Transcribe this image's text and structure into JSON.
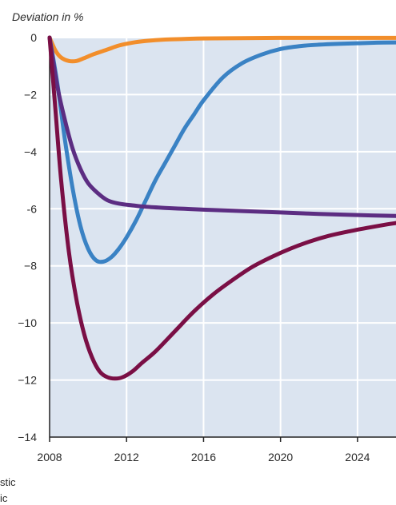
{
  "chart_data": {
    "type": "line",
    "ylabel": "Deviation in %",
    "xlabel": "",
    "xlim": [
      2008,
      2026
    ],
    "ylim": [
      -14,
      0
    ],
    "x_ticks": [
      {
        "value": 2008,
        "label": "2008"
      },
      {
        "value": 2012,
        "label": "2012"
      },
      {
        "value": 2016,
        "label": "2016"
      },
      {
        "value": 2020,
        "label": "2020"
      },
      {
        "value": 2024,
        "label": "2024"
      }
    ],
    "y_ticks": [
      {
        "value": 0,
        "label": "0"
      },
      {
        "value": -2,
        "label": "−2"
      },
      {
        "value": -4,
        "label": "−4"
      },
      {
        "value": -6,
        "label": "-6"
      },
      {
        "value": -8,
        "label": "−8"
      },
      {
        "value": -10,
        "label": "−10"
      },
      {
        "value": -12,
        "label": "−12"
      },
      {
        "value": -14,
        "label": "−14"
      }
    ],
    "grid": true,
    "legend_fragments": [
      "stic",
      "ic"
    ],
    "colors": {
      "plot_background": "#dbe4f0",
      "grid": "#ffffff",
      "axis": "#222222"
    },
    "series": [
      {
        "color": "#f28e2b",
        "x": [
          2008,
          2008.3,
          2008.6,
          2009,
          2009.4,
          2009.8,
          2010.3,
          2011,
          2011.6,
          2012.3,
          2013,
          2014,
          2015,
          2016,
          2018,
          2020,
          2022,
          2024,
          2026
        ],
        "y": [
          0,
          -0.45,
          -0.7,
          -0.82,
          -0.82,
          -0.72,
          -0.58,
          -0.42,
          -0.28,
          -0.18,
          -0.12,
          -0.07,
          -0.05,
          -0.03,
          -0.02,
          -0.01,
          -0.01,
          -0.01,
          -0.01
        ]
      },
      {
        "color": "#3a82c4",
        "x": [
          2008,
          2008.4,
          2008.8,
          2009.2,
          2009.6,
          2010,
          2010.4,
          2010.8,
          2011.2,
          2011.6,
          2012,
          2012.5,
          2013,
          2013.5,
          2014,
          2014.5,
          2015,
          2015.5,
          2016,
          2017,
          2018,
          2019,
          2020,
          2021,
          2022,
          2023,
          2024,
          2025,
          2026
        ],
        "y": [
          0,
          -1.6,
          -3.6,
          -5.3,
          -6.6,
          -7.4,
          -7.8,
          -7.85,
          -7.7,
          -7.4,
          -7.0,
          -6.4,
          -5.7,
          -5.0,
          -4.4,
          -3.8,
          -3.2,
          -2.7,
          -2.2,
          -1.4,
          -0.9,
          -0.6,
          -0.4,
          -0.3,
          -0.25,
          -0.22,
          -0.2,
          -0.18,
          -0.17
        ]
      },
      {
        "color": "#5c2d82",
        "x": [
          2008,
          2008.4,
          2008.8,
          2009.2,
          2009.6,
          2010,
          2010.5,
          2011,
          2011.6,
          2012.3,
          2013,
          2014,
          2015,
          2016,
          2018,
          2020,
          2022,
          2024,
          2026
        ],
        "y": [
          0,
          -1.7,
          -2.9,
          -3.9,
          -4.6,
          -5.1,
          -5.45,
          -5.7,
          -5.82,
          -5.88,
          -5.93,
          -5.97,
          -6.0,
          -6.03,
          -6.08,
          -6.13,
          -6.18,
          -6.22,
          -6.25
        ]
      },
      {
        "color": "#7a0f45",
        "x": [
          2008,
          2008.3,
          2008.6,
          2009,
          2009.4,
          2009.8,
          2010.2,
          2010.6,
          2011,
          2011.4,
          2011.8,
          2012.3,
          2012.8,
          2013.5,
          2014.5,
          2015.5,
          2016.5,
          2017.5,
          2018.5,
          2019.5,
          2020.5,
          2021.5,
          2022.5,
          2023.5,
          2024.5,
          2025.5,
          2026
        ],
        "y": [
          0,
          -2.5,
          -5.0,
          -7.5,
          -9.2,
          -10.4,
          -11.2,
          -11.7,
          -11.9,
          -11.95,
          -11.9,
          -11.7,
          -11.4,
          -11.0,
          -10.3,
          -9.6,
          -9.0,
          -8.5,
          -8.05,
          -7.7,
          -7.4,
          -7.15,
          -6.95,
          -6.8,
          -6.67,
          -6.55,
          -6.5
        ]
      }
    ]
  }
}
